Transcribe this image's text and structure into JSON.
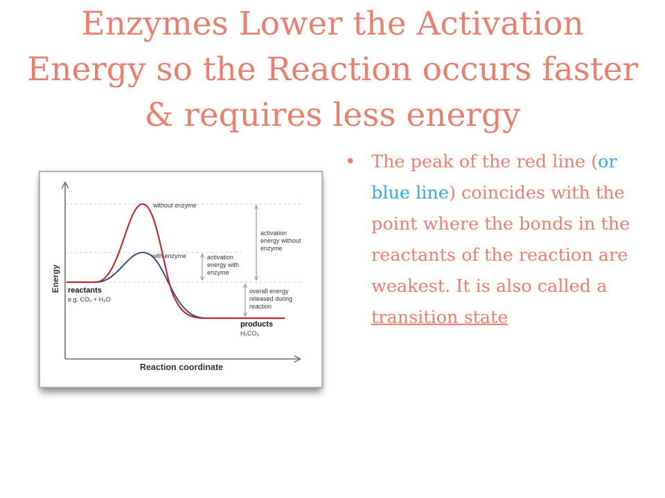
{
  "slide": {
    "title": "Enzymes Lower the Activation Energy so the Reaction occurs faster & requires less energy",
    "bullet": {
      "part1": "The peak of the red line (",
      "part2_blue": "or blue line",
      "part3": ") coincides with the point where the bonds in the reactants of the reaction are weakest. It is also called a ",
      "term": "transition state"
    }
  },
  "diagram": {
    "y_axis_label": "Energy",
    "x_axis_label": "Reaction coordinate",
    "curve_without_enzyme_label": "without enzyme",
    "curve_with_enzyme_label": "with enzyme",
    "reactants_label": "reactants",
    "reactants_example": "e.g. CO₂ + H₂O",
    "products_label": "products",
    "products_example": "H₂CO₃",
    "activation_without_lines": [
      "activation",
      "energy without",
      "enzyme"
    ],
    "activation_with_lines": [
      "activation",
      "energy with",
      "enzyme"
    ],
    "released_lines": [
      "overall energy",
      "released during",
      "reaction"
    ],
    "colors": {
      "without_enzyme": "#c0282d",
      "with_enzyme": "#2f4f86",
      "axis": "#6e6e6e",
      "guide": "#cfcfcf"
    }
  }
}
